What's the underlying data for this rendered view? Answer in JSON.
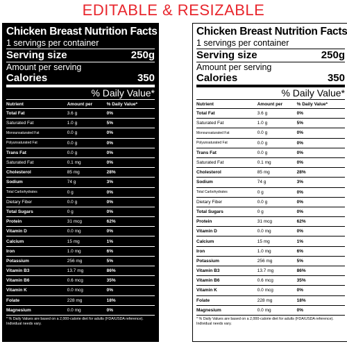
{
  "headline": "EDITABLE & RESIZABLE",
  "label": {
    "title": "Chicken Breast Nutrition Facts",
    "servings": "1 servings per container",
    "serving_size_label": "Serving size",
    "serving_size_value": "250g",
    "amount_per_serving": "Amount per serving",
    "calories_label": "Calories",
    "calories_value": "350",
    "daily_value_heading": "% Daily Value*",
    "columns": {
      "nutrient": "Nutrient",
      "amount": "Amount per",
      "dv": "% Daily Value*"
    },
    "rows": [
      {
        "name": "Total Fat",
        "amount": "3.6 g",
        "dv": "0%",
        "name_style": "b",
        "amount_style": ""
      },
      {
        "name": "Saturated Fat",
        "amount": "1.0 g",
        "dv": "5%",
        "name_style": "",
        "amount_style": ""
      },
      {
        "name": "Monounsaturated Fat",
        "amount": "0.0 g",
        "dv": "0%",
        "name_style": "s",
        "amount_style": ""
      },
      {
        "name": "Polyunsaturated Fat",
        "amount": "0.0 g",
        "dv": "0%",
        "name_style": "s",
        "amount_style": ""
      },
      {
        "name": "Trans Fat",
        "amount": "0.0 g",
        "dv": "0%",
        "name_style": "b",
        "amount_style": "n"
      },
      {
        "name": "Saturated Fat",
        "amount": "0.1 mg",
        "dv": "0%",
        "name_style": "",
        "amount_style": ""
      },
      {
        "name": "Cholesterol",
        "amount": "85 mg",
        "dv": "28%",
        "name_style": "b",
        "amount_style": ""
      },
      {
        "name": "Sodium",
        "amount": "74 g",
        "dv": "3%",
        "name_style": "b",
        "amount_style": "n"
      },
      {
        "name": "Total Carbohydrates",
        "amount": "0 g",
        "dv": "0%",
        "name_style": "s",
        "amount_style": ""
      },
      {
        "name": "Dietary Fiber",
        "amount": "0.0 g",
        "dv": "0%",
        "name_style": "",
        "amount_style": ""
      },
      {
        "name": "Total Sugars",
        "amount": "0 g",
        "dv": "0%",
        "name_style": "b",
        "amount_style": ""
      },
      {
        "name": "Protein",
        "amount": "31 mcg",
        "dv": "62%",
        "name_style": "b",
        "amount_style": ""
      },
      {
        "name": "Vitamin D",
        "amount": "0.0 mg",
        "dv": "0%",
        "name_style": "b",
        "amount_style": ""
      },
      {
        "name": "Calcium",
        "amount": "15 mg",
        "dv": "1%",
        "name_style": "b",
        "amount_style": ""
      },
      {
        "name": "Iron",
        "amount": "1.0 mg",
        "dv": "6%",
        "name_style": "b",
        "amount_style": ""
      },
      {
        "name": "Potassium",
        "amount": "256 mg",
        "dv": "5%",
        "name_style": "b",
        "amount_style": ""
      },
      {
        "name": "Vitamin B3",
        "amount": "13.7 mg",
        "dv": "86%",
        "name_style": "b",
        "amount_style": ""
      },
      {
        "name": "Vitamin B6",
        "amount": "0.6 mcg",
        "dv": "35%",
        "name_style": "b",
        "amount_style": ""
      },
      {
        "name": "Vitamin K",
        "amount": "0.0 mcg",
        "dv": "0%",
        "name_style": "b",
        "amount_style": ""
      },
      {
        "name": "Folate",
        "amount": "228 mg",
        "dv": "18%",
        "name_style": "b",
        "amount_style": ""
      },
      {
        "name": "Magnesium",
        "amount": "0.0 mg",
        "dv": "0%",
        "name_style": "b",
        "amount_style": ""
      }
    ],
    "footnote": "* % Daily Values are based on a 2,000-calorie diet for adults (FDA/USDA reference). Individual needs vary."
  }
}
